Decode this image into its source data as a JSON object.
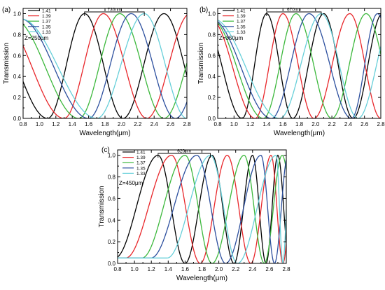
{
  "chart_data": [
    {
      "type": "line",
      "panel_label": "(a)",
      "annotation": "Z=250μm",
      "span_label": "730nm",
      "span_x": [
        1.55,
        2.28
      ],
      "xlabel": "Wavelength(μm)",
      "ylabel": "Transmission",
      "xlim": [
        0.8,
        2.8
      ],
      "ylim": [
        0.0,
        1.05
      ],
      "xticks": [
        "0.8",
        "1.0",
        "1.2",
        "1.4",
        "1.6",
        "1.8",
        "2.0",
        "2.2",
        "2.4",
        "2.6",
        "2.8"
      ],
      "yticks": [
        "0.0",
        "0.2",
        "0.4",
        "0.6",
        "0.8",
        "1.0"
      ],
      "legend_position": "top-left",
      "series": [
        {
          "name": "1.41",
          "color": "#000000",
          "peaks": [
            1.55,
            2.52
          ],
          "troughs": [
            1.1,
            2.02
          ]
        },
        {
          "name": "1.39",
          "color": "#e8262a",
          "peaks": [
            1.78
          ],
          "troughs": [
            1.3,
            2.31
          ]
        },
        {
          "name": "1.37",
          "color": "#3cb83c",
          "peaks": [
            1.98
          ],
          "troughs": [
            1.48,
            2.52
          ]
        },
        {
          "name": "1.35",
          "color": "#2c4f9e",
          "peaks": [
            2.12
          ],
          "troughs": [
            1.6,
            2.66
          ]
        },
        {
          "name": "1.33",
          "color": "#66cfd9",
          "peaks": [
            2.28
          ],
          "troughs": [
            1.7,
            2.8
          ]
        }
      ]
    },
    {
      "type": "line",
      "panel_label": "(b)",
      "annotation": "Z=350μm",
      "span_label": "670nm",
      "span_x": [
        1.4,
        2.07
      ],
      "xlabel": "Wavelength(μm)",
      "ylabel": "Transmission",
      "xlim": [
        0.8,
        2.8
      ],
      "ylim": [
        0.0,
        1.05
      ],
      "xticks": [
        "0.8",
        "1.0",
        "1.2",
        "1.4",
        "1.6",
        "1.8",
        "2.0",
        "2.2",
        "2.4",
        "2.6",
        "2.8"
      ],
      "yticks": [
        "0.0",
        "0.2",
        "0.4",
        "0.6",
        "0.8",
        "1.0"
      ],
      "legend_position": "top-left",
      "series": [
        {
          "name": "1.41",
          "color": "#000000",
          "peaks": [
            1.4,
            2.1
          ],
          "troughs": [
            1.1,
            1.72,
            2.46
          ]
        },
        {
          "name": "1.39",
          "color": "#e8262a",
          "peaks": [
            1.6,
            2.42
          ],
          "troughs": [
            1.26,
            1.98,
            2.8
          ]
        },
        {
          "name": "1.37",
          "color": "#3cb83c",
          "peaks": [
            1.76,
            2.62
          ],
          "troughs": [
            1.36,
            2.2
          ]
        },
        {
          "name": "1.35",
          "color": "#2c4f9e",
          "peaks": [
            1.92,
            2.76
          ],
          "troughs": [
            1.46,
            2.44
          ]
        },
        {
          "name": "1.33",
          "color": "#66cfd9",
          "peaks": [
            2.07
          ],
          "troughs": [
            1.56,
            2.52
          ]
        }
      ]
    },
    {
      "type": "line",
      "panel_label": "(c)",
      "annotation": "Z=450μm",
      "span_label": "620nm",
      "span_x": [
        1.28,
        1.9
      ],
      "xlabel": "Wavelength(μm)",
      "ylabel": "Transmission",
      "xlim": [
        0.8,
        2.8
      ],
      "ylim": [
        0.0,
        1.05
      ],
      "xticks": [
        "0.8",
        "1.0",
        "1.2",
        "1.4",
        "1.6",
        "1.8",
        "2.0",
        "2.2",
        "2.4",
        "2.6",
        "2.8"
      ],
      "yticks": [
        "0.0",
        "0.2",
        "0.4",
        "0.6",
        "0.8",
        "1.0"
      ],
      "legend_position": "top-left",
      "series": [
        {
          "name": "1.41",
          "color": "#000000",
          "peaks": [
            1.28,
            1.92,
            2.4,
            2.7
          ],
          "troughs": [
            1.6,
            2.18,
            2.56
          ]
        },
        {
          "name": "1.39",
          "color": "#e8262a",
          "peaks": [
            1.44,
            2.1,
            2.62
          ],
          "troughs": [
            1.78,
            2.38,
            2.76
          ]
        },
        {
          "name": "1.37",
          "color": "#3cb83c",
          "peaks": [
            1.6,
            2.3,
            2.75
          ],
          "troughs": [
            1.92,
            2.54
          ]
        },
        {
          "name": "1.35",
          "color": "#2c4f9e",
          "peaks": [
            1.74,
            2.5
          ],
          "troughs": [
            2.08,
            2.66
          ]
        },
        {
          "name": "1.33",
          "color": "#66cfd9",
          "peaks": [
            1.9,
            2.68
          ],
          "troughs": [
            2.22,
            2.76
          ]
        }
      ]
    }
  ]
}
